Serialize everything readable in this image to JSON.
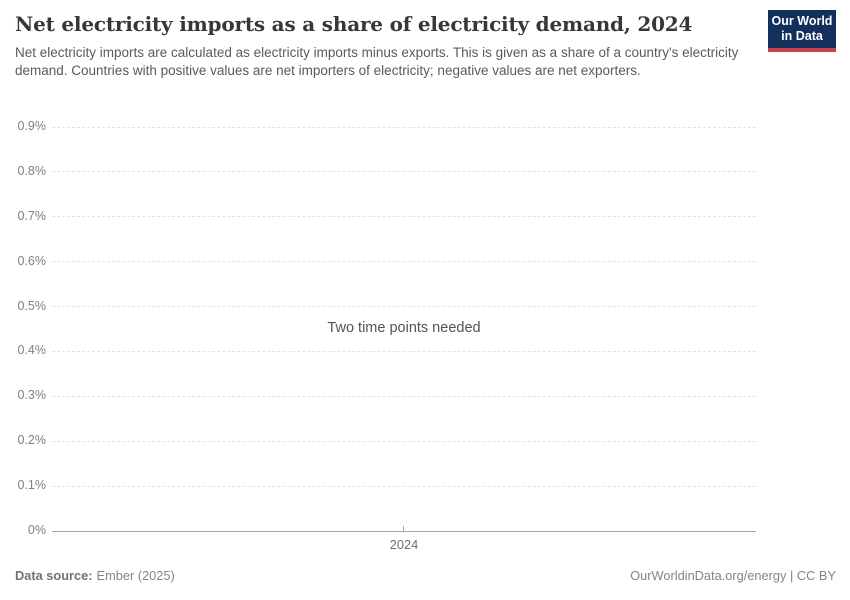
{
  "header": {
    "title": "Net electricity imports as a share of electricity demand, 2024",
    "subtitle": "Net electricity imports are calculated as electricity imports minus exports. This is given as a share of a country's electricity demand. Countries with positive values are net importers of electricity; negative values are net exporters.",
    "logo": {
      "line1": "Our World",
      "line2": "in Data",
      "bg_color": "#12305b",
      "accent_color": "#c9414c"
    }
  },
  "chart_data": {
    "type": "line",
    "title": "Net electricity imports as a share of electricity demand, 2024",
    "series": [],
    "message": "Two time points needed",
    "x_axis": {
      "ticks": [
        "2024"
      ]
    },
    "y_axis": {
      "unit": "%",
      "ylim": [
        0,
        0.9
      ],
      "ticks": [
        {
          "value": 0,
          "label": "0%"
        },
        {
          "value": 0.1,
          "label": "0.1%"
        },
        {
          "value": 0.2,
          "label": "0.2%"
        },
        {
          "value": 0.3,
          "label": "0.3%"
        },
        {
          "value": 0.4,
          "label": "0.4%"
        },
        {
          "value": 0.5,
          "label": "0.5%"
        },
        {
          "value": 0.6,
          "label": "0.6%"
        },
        {
          "value": 0.7,
          "label": "0.7%"
        },
        {
          "value": 0.8,
          "label": "0.8%"
        },
        {
          "value": 0.9,
          "label": "0.9%"
        }
      ]
    },
    "grid": "dashed-horizontal",
    "legend": "none"
  },
  "footer": {
    "source_label": "Data source:",
    "source_value": "Ember (2025)",
    "credit": "OurWorldinData.org/energy | CC BY"
  },
  "colors": {
    "gridline": "#e2e2e2",
    "axis_line": "#a8a8a8",
    "tick_label": "#7f7f7f",
    "title": "#373737",
    "subtitle": "#5a5a5a",
    "footer": "#858585"
  }
}
